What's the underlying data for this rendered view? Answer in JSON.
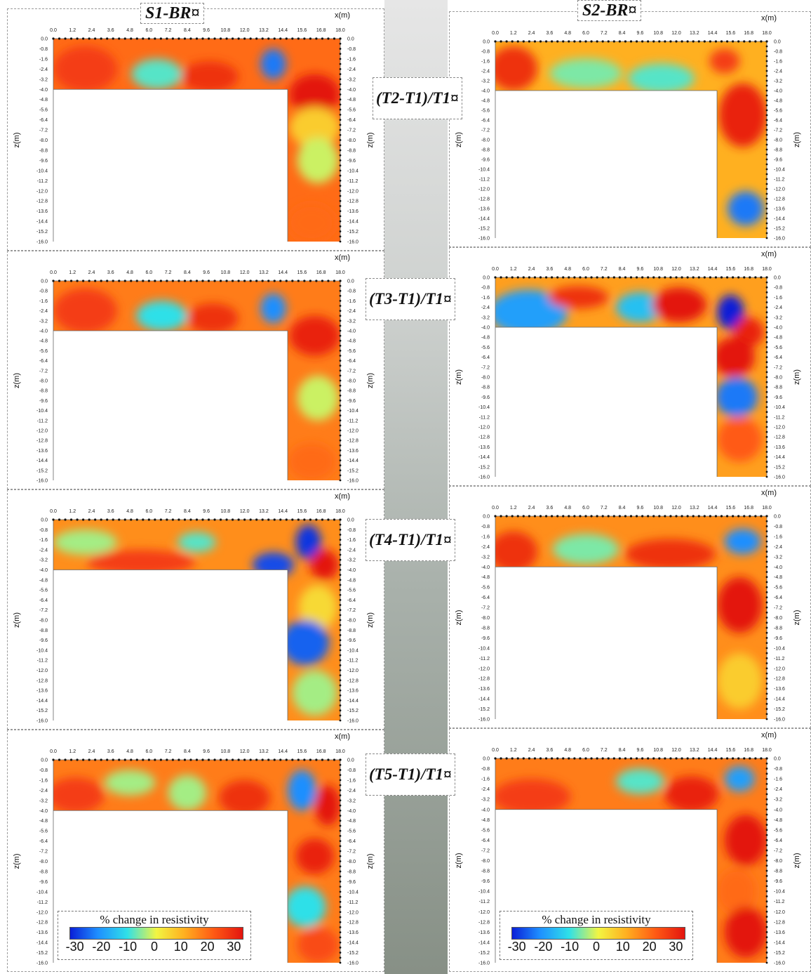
{
  "figure": {
    "site_titles": [
      "S1-BR¤",
      "S2-BR¤"
    ],
    "row_labels": [
      "(T2-T1)/T1¤",
      "(T3-T1)/T1¤",
      "(T4-T1)/T1¤",
      "(T5-T1)/T1¤"
    ]
  },
  "legends": [
    {
      "title": "% change in resistivity",
      "ticks": [
        "-30",
        "-20",
        "-10",
        "0",
        "10",
        "20",
        "30"
      ]
    },
    {
      "title": "% change in resistivity",
      "ticks": [
        "-30",
        "-20",
        "-10",
        "0",
        "10",
        "20",
        "30"
      ]
    }
  ],
  "chart_data": {
    "type": "heatmap",
    "xlabel": "x(m)",
    "ylabel": "z(m)",
    "xlim": [
      0,
      18.0
    ],
    "ylim": [
      -16.0,
      0.0
    ],
    "x_ticks": [
      "0.0",
      "1.2",
      "2.4",
      "3.6",
      "4.8",
      "6.0",
      "7.2",
      "8.4",
      "9.6",
      "10.8",
      "12.0",
      "13.2",
      "14.4",
      "15.6",
      "16.8",
      "18.0"
    ],
    "z_ticks": [
      "0.0",
      "-0.8",
      "-1.6",
      "-2.4",
      "-3.2",
      "-4.0",
      "-4.8",
      "-5.6",
      "-6.4",
      "-7.2",
      "-8.0",
      "-8.8",
      "-9.6",
      "-10.4",
      "-11.2",
      "-12.0",
      "-12.8",
      "-13.6",
      "-14.4",
      "-15.2",
      "-16.0"
    ],
    "colorbar": {
      "label": "% change in resistivity",
      "range": [
        -30,
        30
      ],
      "colors": [
        "#0a1fd8",
        "#1e8fff",
        "#2fe0e8",
        "#f2f542",
        "#ffb020",
        "#ff5a14",
        "#e3150f"
      ]
    },
    "measured_region": {
      "shallow_bottom_z": -4.0,
      "vertical_x": [
        14.7,
        18.0
      ]
    },
    "panels": [
      {
        "site": "S1-BR",
        "label": "(T2-T1)/T1",
        "background": 18,
        "anomalies": [
          {
            "x": 2.0,
            "z": -2.4,
            "rx": 2.0,
            "rz": 1.8,
            "v": 24
          },
          {
            "x": 6.5,
            "z": -2.8,
            "rx": 1.6,
            "rz": 1.2,
            "v": -8
          },
          {
            "x": 9.8,
            "z": -3.0,
            "rx": 1.8,
            "rz": 1.2,
            "v": 26
          },
          {
            "x": 13.8,
            "z": -2.0,
            "rx": 0.8,
            "rz": 1.2,
            "v": -22
          },
          {
            "x": 16.4,
            "z": -4.4,
            "rx": 1.6,
            "rz": 1.6,
            "v": 30
          },
          {
            "x": 16.4,
            "z": -7.0,
            "rx": 1.6,
            "rz": 1.6,
            "v": 6
          },
          {
            "x": 16.6,
            "z": -9.6,
            "rx": 1.3,
            "rz": 1.8,
            "v": -2
          },
          {
            "x": 16.2,
            "z": -14.5,
            "rx": 1.5,
            "rz": 1.5,
            "v": 18
          }
        ]
      },
      {
        "site": "S2-BR",
        "label": "(T2-T1)/T1",
        "background": 10,
        "anomalies": [
          {
            "x": 1.2,
            "z": -2.2,
            "rx": 1.6,
            "rz": 1.8,
            "v": 26
          },
          {
            "x": 6.0,
            "z": -2.6,
            "rx": 2.4,
            "rz": 1.2,
            "v": -6
          },
          {
            "x": 11.0,
            "z": -3.0,
            "rx": 2.2,
            "rz": 1.2,
            "v": -8
          },
          {
            "x": 15.2,
            "z": -1.6,
            "rx": 1.0,
            "rz": 1.0,
            "v": 24
          },
          {
            "x": 16.4,
            "z": -6.0,
            "rx": 1.6,
            "rz": 2.6,
            "v": 28
          },
          {
            "x": 16.6,
            "z": -13.6,
            "rx": 1.2,
            "rz": 1.4,
            "v": -22
          }
        ]
      },
      {
        "site": "S1-BR",
        "label": "(T3-T1)/T1",
        "background": 16,
        "anomalies": [
          {
            "x": 2.0,
            "z": -2.4,
            "rx": 2.0,
            "rz": 1.8,
            "v": 24
          },
          {
            "x": 6.8,
            "z": -2.8,
            "rx": 1.6,
            "rz": 1.2,
            "v": -10
          },
          {
            "x": 10.0,
            "z": -3.0,
            "rx": 1.6,
            "rz": 1.2,
            "v": 26
          },
          {
            "x": 13.8,
            "z": -2.2,
            "rx": 0.8,
            "rz": 1.2,
            "v": -20
          },
          {
            "x": 16.4,
            "z": -4.4,
            "rx": 1.6,
            "rz": 1.6,
            "v": 28
          },
          {
            "x": 16.6,
            "z": -9.4,
            "rx": 1.3,
            "rz": 1.8,
            "v": -2
          },
          {
            "x": 16.2,
            "z": -14.5,
            "rx": 1.5,
            "rz": 1.5,
            "v": 18
          }
        ]
      },
      {
        "site": "S2-BR",
        "label": "(T3-T1)/T1",
        "background": 12,
        "anomalies": [
          {
            "x": 2.2,
            "z": -2.8,
            "rx": 2.6,
            "rz": 1.8,
            "v": -18
          },
          {
            "x": 5.5,
            "z": -1.6,
            "rx": 2.0,
            "rz": 0.9,
            "v": 26
          },
          {
            "x": 9.6,
            "z": -2.4,
            "rx": 1.6,
            "rz": 1.2,
            "v": -14
          },
          {
            "x": 12.2,
            "z": -2.2,
            "rx": 1.8,
            "rz": 1.4,
            "v": 30
          },
          {
            "x": 15.6,
            "z": -2.8,
            "rx": 0.9,
            "rz": 1.4,
            "v": -30
          },
          {
            "x": 16.8,
            "z": -4.4,
            "rx": 1.0,
            "rz": 1.2,
            "v": 28
          },
          {
            "x": 15.8,
            "z": -6.4,
            "rx": 1.4,
            "rz": 1.6,
            "v": 30
          },
          {
            "x": 16.0,
            "z": -9.6,
            "rx": 1.4,
            "rz": 1.6,
            "v": -22
          },
          {
            "x": 16.2,
            "z": -13.0,
            "rx": 1.5,
            "rz": 1.8,
            "v": 20
          }
        ]
      },
      {
        "site": "S1-BR",
        "label": "(T4-T1)/T1",
        "background": 14,
        "anomalies": [
          {
            "x": 2.0,
            "z": -1.8,
            "rx": 2.0,
            "rz": 1.0,
            "v": -4
          },
          {
            "x": 5.5,
            "z": -3.4,
            "rx": 3.4,
            "rz": 1.0,
            "v": 24
          },
          {
            "x": 9.0,
            "z": -1.8,
            "rx": 1.2,
            "rz": 0.8,
            "v": -8
          },
          {
            "x": 13.8,
            "z": -3.6,
            "rx": 1.3,
            "rz": 1.0,
            "v": -26
          },
          {
            "x": 16.0,
            "z": -1.8,
            "rx": 0.8,
            "rz": 1.4,
            "v": -28
          },
          {
            "x": 17.0,
            "z": -3.6,
            "rx": 0.9,
            "rz": 1.2,
            "v": 30
          },
          {
            "x": 16.6,
            "z": -7.0,
            "rx": 1.2,
            "rz": 1.8,
            "v": 4
          },
          {
            "x": 15.8,
            "z": -9.8,
            "rx": 1.5,
            "rz": 1.8,
            "v": -24
          },
          {
            "x": 16.4,
            "z": -13.8,
            "rx": 1.4,
            "rz": 1.8,
            "v": -4
          }
        ]
      },
      {
        "site": "S2-BR",
        "label": "(T4-T1)/T1",
        "background": 14,
        "anomalies": [
          {
            "x": 1.2,
            "z": -2.8,
            "rx": 1.6,
            "rz": 1.6,
            "v": 26
          },
          {
            "x": 6.0,
            "z": -2.6,
            "rx": 2.2,
            "rz": 1.2,
            "v": -6
          },
          {
            "x": 11.6,
            "z": -3.0,
            "rx": 3.0,
            "rz": 1.2,
            "v": 26
          },
          {
            "x": 16.4,
            "z": -2.0,
            "rx": 1.2,
            "rz": 1.0,
            "v": -20
          },
          {
            "x": 16.2,
            "z": -7.0,
            "rx": 1.5,
            "rz": 2.2,
            "v": 30
          },
          {
            "x": 16.2,
            "z": -13.0,
            "rx": 1.5,
            "rz": 2.2,
            "v": 6
          }
        ]
      },
      {
        "site": "S1-BR",
        "label": "(T5-T1)/T1",
        "background": 16,
        "anomalies": [
          {
            "x": 1.4,
            "z": -2.8,
            "rx": 1.8,
            "rz": 1.4,
            "v": 24
          },
          {
            "x": 4.8,
            "z": -1.8,
            "rx": 1.6,
            "rz": 1.0,
            "v": -4
          },
          {
            "x": 8.4,
            "z": -2.6,
            "rx": 1.2,
            "rz": 1.4,
            "v": -4
          },
          {
            "x": 12.0,
            "z": -3.0,
            "rx": 1.6,
            "rz": 1.4,
            "v": 26
          },
          {
            "x": 15.6,
            "z": -2.4,
            "rx": 0.9,
            "rz": 1.6,
            "v": -20
          },
          {
            "x": 17.2,
            "z": -3.6,
            "rx": 0.8,
            "rz": 1.6,
            "v": 30
          },
          {
            "x": 16.4,
            "z": -7.6,
            "rx": 1.2,
            "rz": 1.4,
            "v": 28
          },
          {
            "x": 15.8,
            "z": -11.6,
            "rx": 1.3,
            "rz": 1.6,
            "v": -10
          },
          {
            "x": 16.6,
            "z": -14.6,
            "rx": 1.3,
            "rz": 1.4,
            "v": 22
          }
        ]
      },
      {
        "site": "S2-BR",
        "label": "(T5-T1)/T1",
        "background": 16,
        "anomalies": [
          {
            "x": 2.4,
            "z": -3.0,
            "rx": 2.6,
            "rz": 1.4,
            "v": 24
          },
          {
            "x": 9.6,
            "z": -1.8,
            "rx": 1.6,
            "rz": 1.0,
            "v": -8
          },
          {
            "x": 13.0,
            "z": -2.8,
            "rx": 1.8,
            "rz": 1.4,
            "v": 28
          },
          {
            "x": 16.2,
            "z": -1.6,
            "rx": 1.0,
            "rz": 1.0,
            "v": -18
          },
          {
            "x": 16.6,
            "z": -6.4,
            "rx": 1.4,
            "rz": 2.0,
            "v": 30
          },
          {
            "x": 16.0,
            "z": -10.4,
            "rx": 1.3,
            "rz": 1.8,
            "v": 18
          },
          {
            "x": 16.6,
            "z": -13.6,
            "rx": 1.4,
            "rz": 2.0,
            "v": 30
          }
        ]
      }
    ]
  }
}
